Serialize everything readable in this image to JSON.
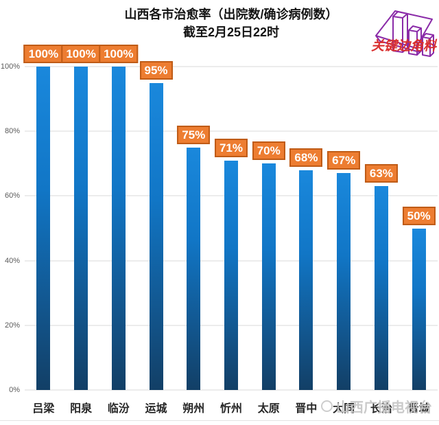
{
  "header": {
    "title_line1": "山西各市治愈率（出院数/确诊病例数）",
    "title_line2": "截至2月25日22时"
  },
  "chart_data": {
    "type": "bar",
    "title": "山西各市治愈率（出院数/确诊病例数）截至2月25日22时",
    "categories": [
      "吕梁",
      "阳泉",
      "临汾",
      "运城",
      "朔州",
      "忻州",
      "太原",
      "晋中",
      "大同",
      "长治",
      "晋城"
    ],
    "values": [
      100,
      100,
      100,
      95,
      75,
      71,
      70,
      68,
      67,
      63,
      50
    ],
    "data_labels": [
      "100%",
      "100%",
      "100%",
      "95%",
      "75%",
      "71%",
      "70%",
      "68%",
      "67%",
      "63%",
      "50%"
    ],
    "xlabel": "",
    "ylabel": "",
    "ylim": [
      0,
      100
    ],
    "yticks": [
      "0%",
      "20%",
      "40%",
      "60%",
      "80%",
      "100%"
    ],
    "grid": true,
    "legend_position": "none",
    "colors": {
      "bar_gradient_top": "#1a88dc",
      "bar_gradient_bottom": "#123f66",
      "data_label_bg": "#ed7d31",
      "data_label_border": "#bf5b16",
      "data_label_text": "#ffffff",
      "gridline": "#d9d9d9",
      "axis_text": "#595959"
    }
  },
  "watermarks": {
    "corner_logo_text": "关键边角料",
    "corner_logo_text_color": "#d93030",
    "corner_logo_outline_color": "#8a2ba8",
    "station_text": "山西广播电视台",
    "station_color": "#c6c6c6"
  }
}
